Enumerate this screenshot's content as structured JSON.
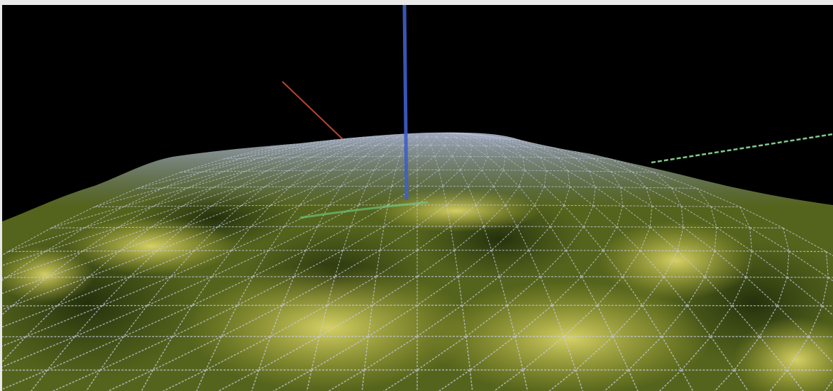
{
  "viewer": {
    "background_color": "#000000",
    "frame_color": "#e9e9e9",
    "axes": {
      "x_axis_color": "#b5452c",
      "y_axis_color": "#7fc98a",
      "z_axis_color": "#3f5fc9"
    },
    "terrain": {
      "colors": [
        "#2c3d12",
        "#55641c",
        "#8f9a2a",
        "#c4c14a",
        "#e2dd78"
      ],
      "wireframe_color": "#c9cde8",
      "crest_color": "#9aa6d8"
    }
  }
}
